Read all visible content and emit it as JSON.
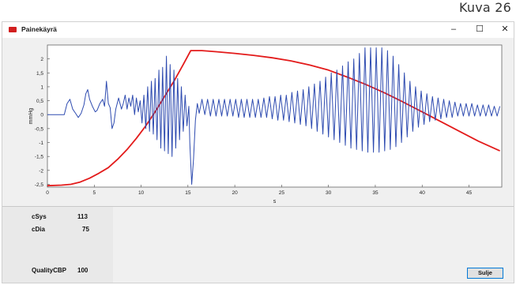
{
  "caption": "Kuva 26",
  "window": {
    "title": "Painekäyrä",
    "controls": {
      "minimize": "–",
      "maximize": "☐",
      "close": "✕"
    }
  },
  "results": {
    "sys_label": "cSys",
    "sys_value": "113",
    "dia_label": "cDia",
    "dia_value": "75",
    "quality_label": "QualityCBP",
    "quality_value": "100"
  },
  "close_button": "Sulje",
  "colors": {
    "oscillation": "#2e4bb0",
    "pressure": "#e31b1b"
  },
  "chart_data": {
    "type": "line",
    "xlabel": "s",
    "ylabel": "mmHg",
    "xlim": [
      0,
      48.5
    ],
    "ylim": [
      -2.6,
      2.5
    ],
    "xticks": [
      0,
      5,
      10,
      15,
      20,
      25,
      30,
      35,
      40,
      45
    ],
    "yticks": [
      -2.5,
      -2,
      -1.5,
      -1,
      -0.5,
      0,
      0.5,
      1,
      1.5,
      2
    ],
    "ytick_labels": [
      "-2,5",
      "-2",
      "-1,5",
      "-1",
      "-0,5",
      "0",
      "0,5",
      "1",
      "1,5",
      "2"
    ],
    "grid": false,
    "series": [
      {
        "color": "#e31b1b",
        "points": [
          [
            0,
            -2.55
          ],
          [
            1.5,
            -2.53
          ],
          [
            2.5,
            -2.5
          ],
          [
            3.5,
            -2.42
          ],
          [
            4.5,
            -2.28
          ],
          [
            5.5,
            -2.1
          ],
          [
            6.5,
            -1.9
          ],
          [
            7.5,
            -1.6
          ],
          [
            8.5,
            -1.25
          ],
          [
            9.5,
            -0.85
          ],
          [
            10.5,
            -0.4
          ],
          [
            11.5,
            0.1
          ],
          [
            12.5,
            0.65
          ],
          [
            13.5,
            1.2
          ],
          [
            14.5,
            1.8
          ],
          [
            15.3,
            2.3
          ],
          [
            16.5,
            2.3
          ],
          [
            18,
            2.26
          ],
          [
            20,
            2.2
          ],
          [
            22,
            2.13
          ],
          [
            24,
            2.04
          ],
          [
            26,
            1.93
          ],
          [
            28,
            1.78
          ],
          [
            30,
            1.6
          ],
          [
            32,
            1.35
          ],
          [
            34,
            1.08
          ],
          [
            36,
            0.78
          ],
          [
            38,
            0.45
          ],
          [
            40,
            0.1
          ],
          [
            42,
            -0.25
          ],
          [
            44,
            -0.6
          ],
          [
            46,
            -0.95
          ],
          [
            48.3,
            -1.3
          ]
        ]
      },
      {
        "color": "#2e4bb0",
        "points": [
          [
            0,
            0
          ],
          [
            1.8,
            0
          ],
          [
            2.1,
            0.4
          ],
          [
            2.4,
            0.55
          ],
          [
            2.7,
            0.2
          ],
          [
            3.0,
            0.05
          ],
          [
            3.3,
            -0.1
          ],
          [
            3.6,
            0.05
          ],
          [
            3.9,
            0.35
          ],
          [
            4.1,
            0.75
          ],
          [
            4.3,
            0.9
          ],
          [
            4.5,
            0.55
          ],
          [
            4.8,
            0.3
          ],
          [
            5.1,
            0.1
          ],
          [
            5.3,
            0.15
          ],
          [
            5.6,
            0.4
          ],
          [
            5.9,
            0.55
          ],
          [
            6.1,
            0.3
          ],
          [
            6.3,
            1.2
          ],
          [
            6.5,
            0.4
          ],
          [
            6.7,
            0.25
          ],
          [
            6.9,
            -0.5
          ],
          [
            7.1,
            -0.3
          ],
          [
            7.3,
            0.2
          ],
          [
            7.6,
            0.6
          ],
          [
            7.9,
            0.2
          ],
          [
            8.1,
            0.4
          ],
          [
            8.3,
            0.7
          ],
          [
            8.5,
            0.2
          ],
          [
            8.7,
            0.6
          ],
          [
            8.9,
            0.3
          ],
          [
            9.1,
            0.7
          ],
          [
            9.3,
            0.0
          ],
          [
            9.5,
            0.6
          ],
          [
            9.7,
            0.1
          ],
          [
            9.9,
            0.5
          ],
          [
            10.1,
            -0.3
          ],
          [
            10.3,
            0.7
          ],
          [
            10.5,
            -0.5
          ],
          [
            10.7,
            1.0
          ],
          [
            10.9,
            -0.6
          ],
          [
            11.1,
            1.2
          ],
          [
            11.3,
            -0.7
          ],
          [
            11.5,
            1.3
          ],
          [
            11.7,
            -0.9
          ],
          [
            11.9,
            1.6
          ],
          [
            12.1,
            -1.2
          ],
          [
            12.3,
            1.7
          ],
          [
            12.5,
            -1.3
          ],
          [
            12.7,
            2.1
          ],
          [
            12.9,
            -1.4
          ],
          [
            13.1,
            1.8
          ],
          [
            13.3,
            -1.5
          ],
          [
            13.5,
            1.6
          ],
          [
            13.7,
            -1.2
          ],
          [
            13.9,
            1.3
          ],
          [
            14.1,
            -0.9
          ],
          [
            14.3,
            1.0
          ],
          [
            14.5,
            -0.6
          ],
          [
            14.7,
            0.7
          ],
          [
            14.9,
            -0.4
          ],
          [
            15.1,
            0.3
          ],
          [
            15.2,
            -1.0
          ],
          [
            15.4,
            -2.5
          ],
          [
            15.6,
            -1.6
          ],
          [
            15.8,
            -0.2
          ],
          [
            16.0,
            0.4
          ],
          [
            16.2,
            0.05
          ],
          [
            16.5,
            0.55
          ],
          [
            16.8,
            0.0
          ],
          [
            17.1,
            0.55
          ],
          [
            17.4,
            -0.05
          ],
          [
            17.7,
            0.55
          ],
          [
            18.0,
            -0.05
          ],
          [
            18.3,
            0.55
          ],
          [
            18.6,
            -0.05
          ],
          [
            18.9,
            0.55
          ],
          [
            19.2,
            -0.05
          ],
          [
            19.5,
            0.55
          ],
          [
            19.8,
            -0.05
          ],
          [
            20.1,
            0.55
          ],
          [
            20.4,
            -0.1
          ],
          [
            20.7,
            0.55
          ],
          [
            21.0,
            -0.1
          ],
          [
            21.3,
            0.55
          ],
          [
            21.6,
            -0.1
          ],
          [
            21.9,
            0.55
          ],
          [
            22.2,
            -0.1
          ],
          [
            22.5,
            0.55
          ],
          [
            22.8,
            -0.1
          ],
          [
            23.1,
            0.6
          ],
          [
            23.4,
            -0.1
          ],
          [
            23.7,
            0.65
          ],
          [
            24.0,
            -0.15
          ],
          [
            24.3,
            0.65
          ],
          [
            24.6,
            -0.2
          ],
          [
            24.9,
            0.7
          ],
          [
            25.2,
            -0.2
          ],
          [
            25.5,
            0.7
          ],
          [
            25.8,
            -0.25
          ],
          [
            26.1,
            0.8
          ],
          [
            26.4,
            -0.3
          ],
          [
            26.7,
            0.85
          ],
          [
            27.0,
            -0.35
          ],
          [
            27.3,
            0.9
          ],
          [
            27.6,
            -0.4
          ],
          [
            27.9,
            1.0
          ],
          [
            28.2,
            -0.5
          ],
          [
            28.5,
            1.1
          ],
          [
            28.8,
            -0.6
          ],
          [
            29.1,
            1.2
          ],
          [
            29.4,
            -0.7
          ],
          [
            29.7,
            1.35
          ],
          [
            30.0,
            -0.8
          ],
          [
            30.3,
            1.5
          ],
          [
            30.6,
            -0.9
          ],
          [
            30.9,
            1.6
          ],
          [
            31.2,
            -1.0
          ],
          [
            31.5,
            1.75
          ],
          [
            31.8,
            -1.1
          ],
          [
            32.1,
            1.9
          ],
          [
            32.4,
            -1.2
          ],
          [
            32.7,
            2.0
          ],
          [
            33.0,
            -1.25
          ],
          [
            33.3,
            2.2
          ],
          [
            33.6,
            -1.3
          ],
          [
            33.9,
            2.4
          ],
          [
            34.2,
            -1.35
          ],
          [
            34.5,
            2.4
          ],
          [
            34.8,
            -1.35
          ],
          [
            35.1,
            2.4
          ],
          [
            35.4,
            -1.35
          ],
          [
            35.7,
            2.4
          ],
          [
            36.0,
            -1.3
          ],
          [
            36.3,
            2.3
          ],
          [
            36.6,
            -1.25
          ],
          [
            36.9,
            2.1
          ],
          [
            37.2,
            -1.15
          ],
          [
            37.5,
            1.8
          ],
          [
            37.8,
            -1.0
          ],
          [
            38.1,
            1.5
          ],
          [
            38.4,
            -0.8
          ],
          [
            38.7,
            1.2
          ],
          [
            39.0,
            -0.6
          ],
          [
            39.3,
            1.0
          ],
          [
            39.6,
            -0.45
          ],
          [
            39.9,
            0.85
          ],
          [
            40.2,
            -0.35
          ],
          [
            40.5,
            0.75
          ],
          [
            40.8,
            -0.25
          ],
          [
            41.1,
            0.65
          ],
          [
            41.4,
            -0.2
          ],
          [
            41.7,
            0.6
          ],
          [
            42.0,
            -0.15
          ],
          [
            42.3,
            0.55
          ],
          [
            42.6,
            -0.1
          ],
          [
            42.9,
            0.5
          ],
          [
            43.2,
            -0.1
          ],
          [
            43.5,
            0.45
          ],
          [
            43.8,
            -0.05
          ],
          [
            44.1,
            0.4
          ],
          [
            44.4,
            -0.05
          ],
          [
            44.7,
            0.4
          ],
          [
            45.0,
            -0.05
          ],
          [
            45.3,
            0.4
          ],
          [
            45.6,
            -0.05
          ],
          [
            45.9,
            0.35
          ],
          [
            46.2,
            -0.05
          ],
          [
            46.5,
            0.35
          ],
          [
            46.8,
            -0.05
          ],
          [
            47.1,
            0.35
          ],
          [
            47.4,
            -0.05
          ],
          [
            47.7,
            0.3
          ],
          [
            48.0,
            -0.05
          ],
          [
            48.3,
            0.3
          ]
        ]
      }
    ]
  }
}
